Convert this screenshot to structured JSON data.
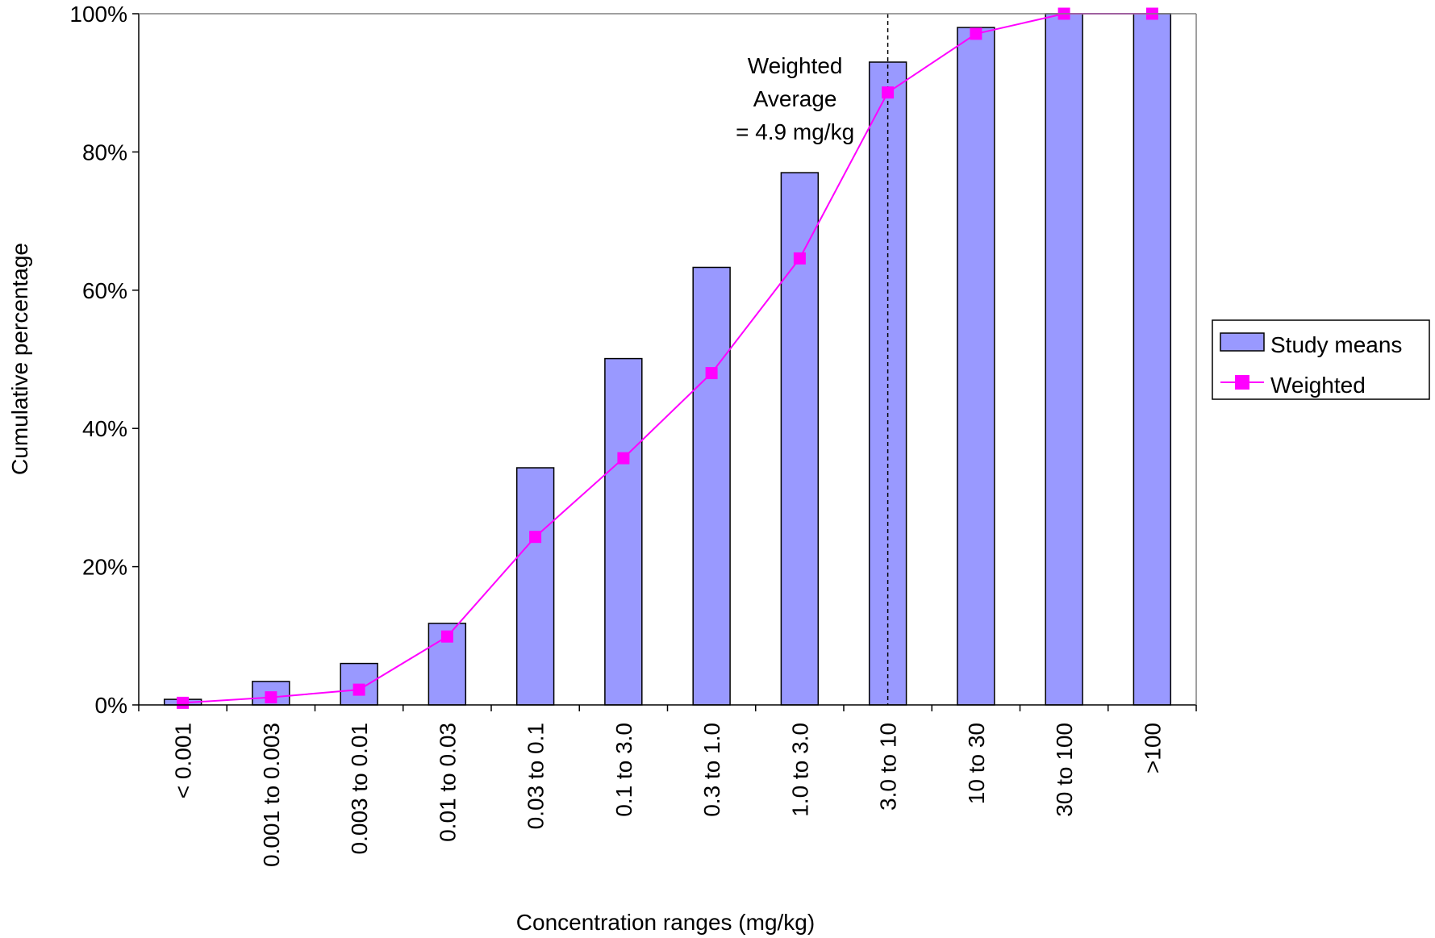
{
  "chart_data": {
    "type": "bar",
    "title": "",
    "xlabel": "Concentration ranges (mg/kg)",
    "ylabel": "Cumulative percentage",
    "ylim": [
      0,
      100
    ],
    "y_ticks": [
      0,
      20,
      40,
      60,
      80,
      100
    ],
    "y_tick_labels": [
      "0%",
      "20%",
      "40%",
      "60%",
      "80%",
      "100%"
    ],
    "grid": false,
    "legend_position": "right",
    "categories": [
      "< 0.001",
      "0.001 to 0.003",
      "0.003 to 0.01",
      "0.01 to 0.03",
      "0.03 to 0.1",
      "0.1 to 3.0",
      "0.3 to 1.0",
      "1.0 to 3.0",
      "3.0 to 10",
      "10 to 30",
      "30 to 100",
      ">100"
    ],
    "series": [
      {
        "name": "Study means",
        "type": "bar",
        "color": "#9999ff",
        "values": [
          0.8,
          3.4,
          6.0,
          11.8,
          34.3,
          50.1,
          63.3,
          77.0,
          93.0,
          98.0,
          100,
          100
        ]
      },
      {
        "name": "Weighted",
        "type": "line",
        "color": "#ff00ff",
        "values": [
          0.3,
          1.1,
          2.2,
          9.9,
          24.3,
          35.7,
          48.0,
          64.6,
          88.6,
          97.1,
          100,
          100
        ]
      }
    ],
    "annotation": {
      "lines": [
        "Weighted",
        "Average",
        "= 4.9 mg/kg"
      ],
      "category": "3.0 to 10"
    }
  }
}
